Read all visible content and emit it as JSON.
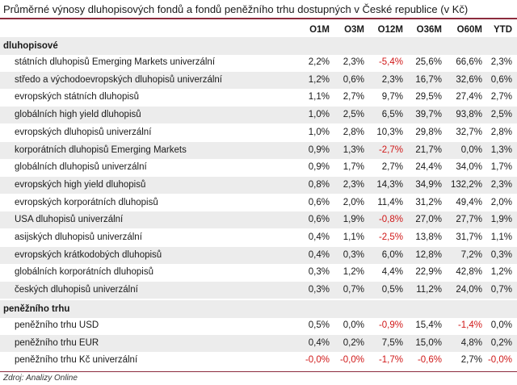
{
  "title": "Průměrné výnosy dluhopisových fondů a fondů peněžního trhu dostupných v České republice (v Kč)",
  "columns": [
    "O1M",
    "O3M",
    "O12M",
    "O36M",
    "O60M",
    "YTD"
  ],
  "sections": [
    {
      "name": "dluhopisové",
      "rows": [
        {
          "label": "státních dluhopisů Emerging Markets univerzální",
          "values": [
            "2,2%",
            "2,3%",
            "-5,4%",
            "25,6%",
            "66,6%",
            "2,3%"
          ]
        },
        {
          "label": "středo a východoevropských dluhopisů univerzální",
          "values": [
            "1,2%",
            "0,6%",
            "2,3%",
            "16,7%",
            "32,6%",
            "0,6%"
          ]
        },
        {
          "label": "evropských státních dluhopisů",
          "values": [
            "1,1%",
            "2,7%",
            "9,7%",
            "29,5%",
            "27,4%",
            "2,7%"
          ]
        },
        {
          "label": "globálních high yield dluhopisů",
          "values": [
            "1,0%",
            "2,5%",
            "6,5%",
            "39,7%",
            "93,8%",
            "2,5%"
          ]
        },
        {
          "label": "evropských dluhopisů univerzální",
          "values": [
            "1,0%",
            "2,8%",
            "10,3%",
            "29,8%",
            "32,7%",
            "2,8%"
          ]
        },
        {
          "label": "korporátních dluhopisů Emerging Markets",
          "values": [
            "0,9%",
            "1,3%",
            "-2,7%",
            "21,7%",
            "0,0%",
            "1,3%"
          ]
        },
        {
          "label": "globálních dluhopisů univerzální",
          "values": [
            "0,9%",
            "1,7%",
            "2,7%",
            "24,4%",
            "34,0%",
            "1,7%"
          ]
        },
        {
          "label": "evropských high yield dluhopisů",
          "values": [
            "0,8%",
            "2,3%",
            "14,3%",
            "34,9%",
            "132,2%",
            "2,3%"
          ]
        },
        {
          "label": "evropských korporátních dluhopisů",
          "values": [
            "0,6%",
            "2,0%",
            "11,4%",
            "31,2%",
            "49,4%",
            "2,0%"
          ]
        },
        {
          "label": "USA dluhopisů univerzální",
          "values": [
            "0,6%",
            "1,9%",
            "-0,8%",
            "27,0%",
            "27,7%",
            "1,9%"
          ]
        },
        {
          "label": "asijských dluhopisů univerzální",
          "values": [
            "0,4%",
            "1,1%",
            "-2,5%",
            "13,8%",
            "31,7%",
            "1,1%"
          ]
        },
        {
          "label": "evropských krátkodobých dluhopisů",
          "values": [
            "0,4%",
            "0,3%",
            "6,0%",
            "12,8%",
            "7,2%",
            "0,3%"
          ]
        },
        {
          "label": "globálních korporátních dluhopisů",
          "values": [
            "0,3%",
            "1,2%",
            "4,4%",
            "22,9%",
            "42,8%",
            "1,2%"
          ]
        },
        {
          "label": "českých dluhopisů univerzální",
          "values": [
            "0,3%",
            "0,7%",
            "0,5%",
            "11,2%",
            "24,0%",
            "0,7%"
          ]
        }
      ]
    },
    {
      "name": "peněžního trhu",
      "rows": [
        {
          "label": "peněžního trhu USD",
          "values": [
            "0,5%",
            "0,0%",
            "-0,9%",
            "15,4%",
            "-1,4%",
            "0,0%"
          ]
        },
        {
          "label": "peněžního trhu EUR",
          "values": [
            "0,4%",
            "0,2%",
            "7,5%",
            "15,0%",
            "4,8%",
            "0,2%"
          ]
        },
        {
          "label": "peněžního trhu Kč univerzální",
          "values": [
            "-0,0%",
            "-0,0%",
            "-1,7%",
            "-0,6%",
            "2,7%",
            "-0,0%"
          ]
        }
      ]
    }
  ],
  "source": "Zdroj: Analizy Online",
  "colors": {
    "accent": "#8c2b3d",
    "negative": "#d01818",
    "stripe": "#ececec"
  }
}
